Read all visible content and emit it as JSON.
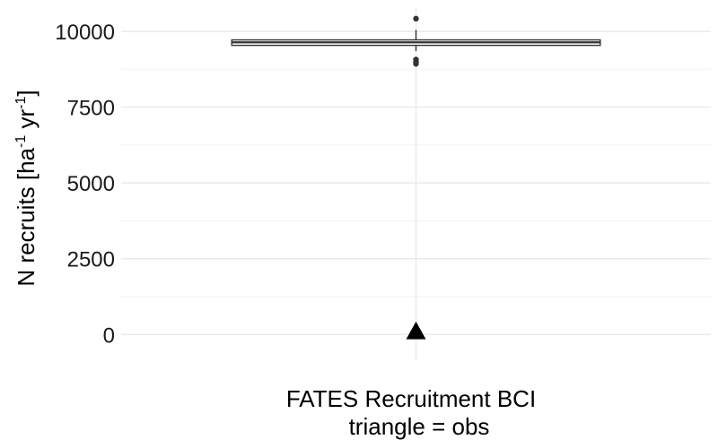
{
  "chart_data": {
    "type": "boxplot",
    "categories": [
      "FATES Recruitment BCI"
    ],
    "xlabel_line2": "triangle = obs",
    "ylabel": {
      "base": "N recruits [ha",
      "sup1": "-1",
      "mid": " yr",
      "sup2": "-1",
      "end": "]"
    },
    "ylim": [
      -850,
      10800
    ],
    "yticks": [
      0,
      2500,
      5000,
      7500,
      10000
    ],
    "ytick_labels": [
      "0",
      "2500",
      "5000",
      "7500",
      "10000"
    ],
    "grid": true,
    "box": {
      "q1": 9540,
      "median": 9640,
      "q3": 9720,
      "whisker_low": 9350,
      "whisker_high": 10050,
      "outliers": [
        10420,
        9070,
        8980,
        8930
      ]
    },
    "observed": {
      "marker": "triangle",
      "value": 100
    },
    "colors": {
      "box_line": "#333333",
      "grid_major": "#ebebeb",
      "grid_minor": "#f4f4f4",
      "marker": "#000000"
    }
  }
}
